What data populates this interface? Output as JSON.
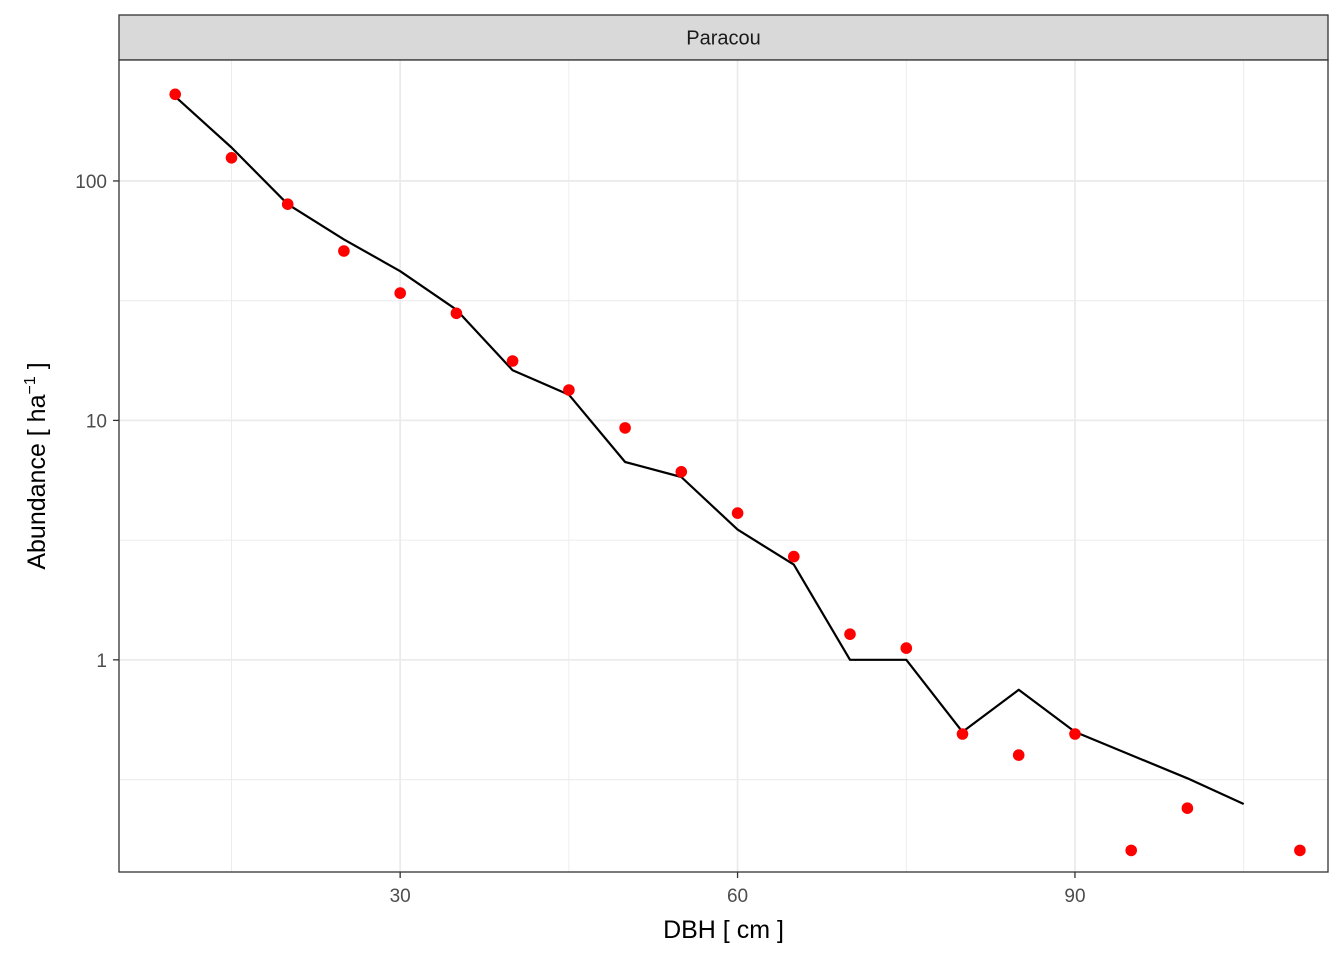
{
  "chart_data": {
    "type": "scatter",
    "facet_label": "Paracou",
    "xlabel": "DBH [ cm ]",
    "ylabel": {
      "prefix": "Abundance [ ha",
      "superscript": "−1",
      "suffix": " ]"
    },
    "y_scale": "log10",
    "xlim": [
      5,
      112.5
    ],
    "ylim": [
      0.13,
      320
    ],
    "x_ticks": [
      30,
      60,
      90
    ],
    "x_minor_ticks": [
      15,
      45,
      75,
      105
    ],
    "y_ticks": [
      1,
      10,
      100
    ],
    "y_tick_labels": [
      "1",
      "10",
      "100"
    ],
    "y_minor_ticks": [
      0.316,
      3.16,
      31.6
    ],
    "grid": true,
    "colors": {
      "points": "#ff0000",
      "line": "#000000",
      "strip_fill": "#d9d9d9",
      "grid": "#ebebeb",
      "panel_border": "#333333"
    },
    "series": [
      {
        "kind": "points",
        "x": [
          10,
          15,
          20,
          25,
          30,
          35,
          40,
          45,
          50,
          55,
          60,
          65,
          70,
          75,
          80,
          85,
          90,
          95,
          100,
          110
        ],
        "y": [
          230,
          125,
          80,
          51,
          34,
          28,
          17.7,
          13.4,
          9.3,
          6.1,
          4.1,
          2.7,
          1.28,
          1.12,
          0.49,
          0.4,
          0.49,
          0.16,
          0.24,
          0.16
        ]
      },
      {
        "kind": "line",
        "x": [
          10,
          15,
          20,
          25,
          30,
          35,
          40,
          45,
          50,
          55,
          60,
          65,
          70,
          75,
          80,
          85,
          90,
          95,
          100,
          105
        ],
        "y": [
          225,
          138,
          80,
          57,
          42,
          29,
          16.2,
          12.8,
          6.7,
          5.8,
          3.5,
          2.5,
          1.0,
          1.0,
          0.5,
          0.75,
          0.5,
          0.4,
          0.32,
          0.25
        ]
      }
    ]
  }
}
